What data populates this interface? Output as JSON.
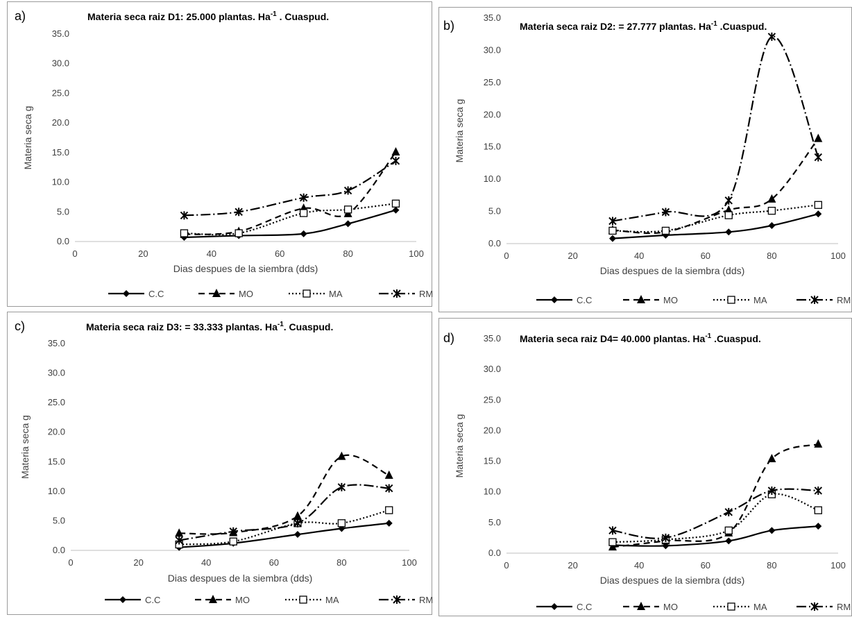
{
  "chart_data": [
    {
      "type": "line",
      "panel_label": "a)",
      "title": "Materia seca raiz D1: 25.000 plantas.  Ha",
      "title_sup": "-1",
      "title_tail": " . Cuaspud.",
      "xlabel": "Dias despues de la siembra (dds)",
      "ylabel": "Materia seca g",
      "xlim": [
        0,
        100
      ],
      "ylim": [
        0,
        35
      ],
      "x_ticks": [
        "0",
        "20",
        "40",
        "60",
        "80",
        "100"
      ],
      "y_ticks": [
        "0.0",
        "5.0",
        "10.0",
        "15.0",
        "20.0",
        "25.0",
        "30.0",
        "35.0"
      ],
      "grid": false,
      "legend_position": "bottom",
      "x": [
        32,
        48,
        67,
        80,
        94
      ],
      "series": [
        {
          "name": "C.C",
          "values": [
            0.7,
            1.0,
            1.3,
            3.0,
            5.3
          ]
        },
        {
          "name": "MO",
          "values": [
            1.2,
            1.7,
            5.6,
            4.7,
            15.1
          ]
        },
        {
          "name": "MA",
          "values": [
            1.4,
            1.4,
            4.8,
            5.4,
            6.4
          ]
        },
        {
          "name": "RM",
          "values": [
            4.4,
            5.0,
            7.4,
            8.6,
            13.6
          ]
        }
      ]
    },
    {
      "type": "line",
      "panel_label": "b)",
      "title": "Materia seca raiz D2: = 27.777 plantas.  Ha",
      "title_sup": "-1",
      "title_tail": " .Cuaspud.",
      "xlabel": "Dias despues de la siembra (dds)",
      "ylabel": "Materia seca g",
      "xlim": [
        0,
        100
      ],
      "ylim": [
        0,
        35
      ],
      "x_ticks": [
        "0",
        "20",
        "40",
        "60",
        "80",
        "100"
      ],
      "y_ticks": [
        "0.0",
        "5.0",
        "10.0",
        "15.0",
        "20.0",
        "25.0",
        "30.0",
        "35.0"
      ],
      "grid": false,
      "legend_position": "bottom",
      "x": [
        32,
        48,
        67,
        80,
        94
      ],
      "series": [
        {
          "name": "C.C",
          "values": [
            0.8,
            1.3,
            1.8,
            2.8,
            4.6
          ]
        },
        {
          "name": "MO",
          "values": [
            2.1,
            1.8,
            5.2,
            6.9,
            16.3
          ]
        },
        {
          "name": "MA",
          "values": [
            2.0,
            2.0,
            4.4,
            5.1,
            6.0
          ]
        },
        {
          "name": "RM",
          "values": [
            3.5,
            4.9,
            6.7,
            32.1,
            13.4
          ]
        }
      ]
    },
    {
      "type": "line",
      "panel_label": "c)",
      "title": "Materia seca raiz D3: = 33.333 plantas. Ha",
      "title_sup": "-1",
      "title_tail": ".  Cuaspud.",
      "xlabel": "Dias despues de la siembra (dds)",
      "ylabel": "Materia seca g",
      "xlim": [
        0,
        100
      ],
      "ylim": [
        0,
        35
      ],
      "x_ticks": [
        "0",
        "20",
        "40",
        "60",
        "80",
        "100"
      ],
      "y_ticks": [
        "0.0",
        "5.0",
        "10.0",
        "15.0",
        "20.0",
        "25.0",
        "30.0",
        "35.0"
      ],
      "grid": false,
      "legend_position": "bottom",
      "x": [
        32,
        48,
        67,
        80,
        94
      ],
      "series": [
        {
          "name": "C.C",
          "values": [
            0.5,
            1.2,
            2.7,
            3.7,
            4.6
          ]
        },
        {
          "name": "MO",
          "values": [
            2.9,
            3.0,
            5.8,
            15.9,
            12.7
          ]
        },
        {
          "name": "MA",
          "values": [
            1.0,
            1.5,
            4.6,
            4.6,
            6.8
          ]
        },
        {
          "name": "RM",
          "values": [
            1.7,
            3.2,
            4.6,
            10.7,
            10.5
          ]
        }
      ]
    },
    {
      "type": "line",
      "panel_label": "d)",
      "title": "Materia seca raiz D4= 40.000 plantas. Ha",
      "title_sup": "-1",
      "title_tail": " .Cuaspud.",
      "xlabel": "Dias despues de la siembra (dds)",
      "ylabel": "Materia seca g",
      "xlim": [
        0,
        100
      ],
      "ylim": [
        0,
        35
      ],
      "x_ticks": [
        "0",
        "20",
        "40",
        "60",
        "80",
        "100"
      ],
      "y_ticks": [
        "0.0",
        "5.0",
        "10.0",
        "15.0",
        "20.0",
        "25.0",
        "30.0",
        "35.0"
      ],
      "grid": false,
      "legend_position": "bottom",
      "x": [
        32,
        48,
        67,
        80,
        94
      ],
      "series": [
        {
          "name": "C.C",
          "values": [
            1.3,
            1.2,
            2.0,
            3.7,
            4.4
          ]
        },
        {
          "name": "MO",
          "values": [
            1.0,
            2.0,
            3.3,
            15.4,
            17.8
          ]
        },
        {
          "name": "MA",
          "values": [
            1.8,
            2.2,
            3.7,
            9.6,
            7.0
          ]
        },
        {
          "name": "RM",
          "values": [
            3.7,
            2.5,
            6.7,
            10.2,
            10.2
          ]
        }
      ]
    }
  ]
}
